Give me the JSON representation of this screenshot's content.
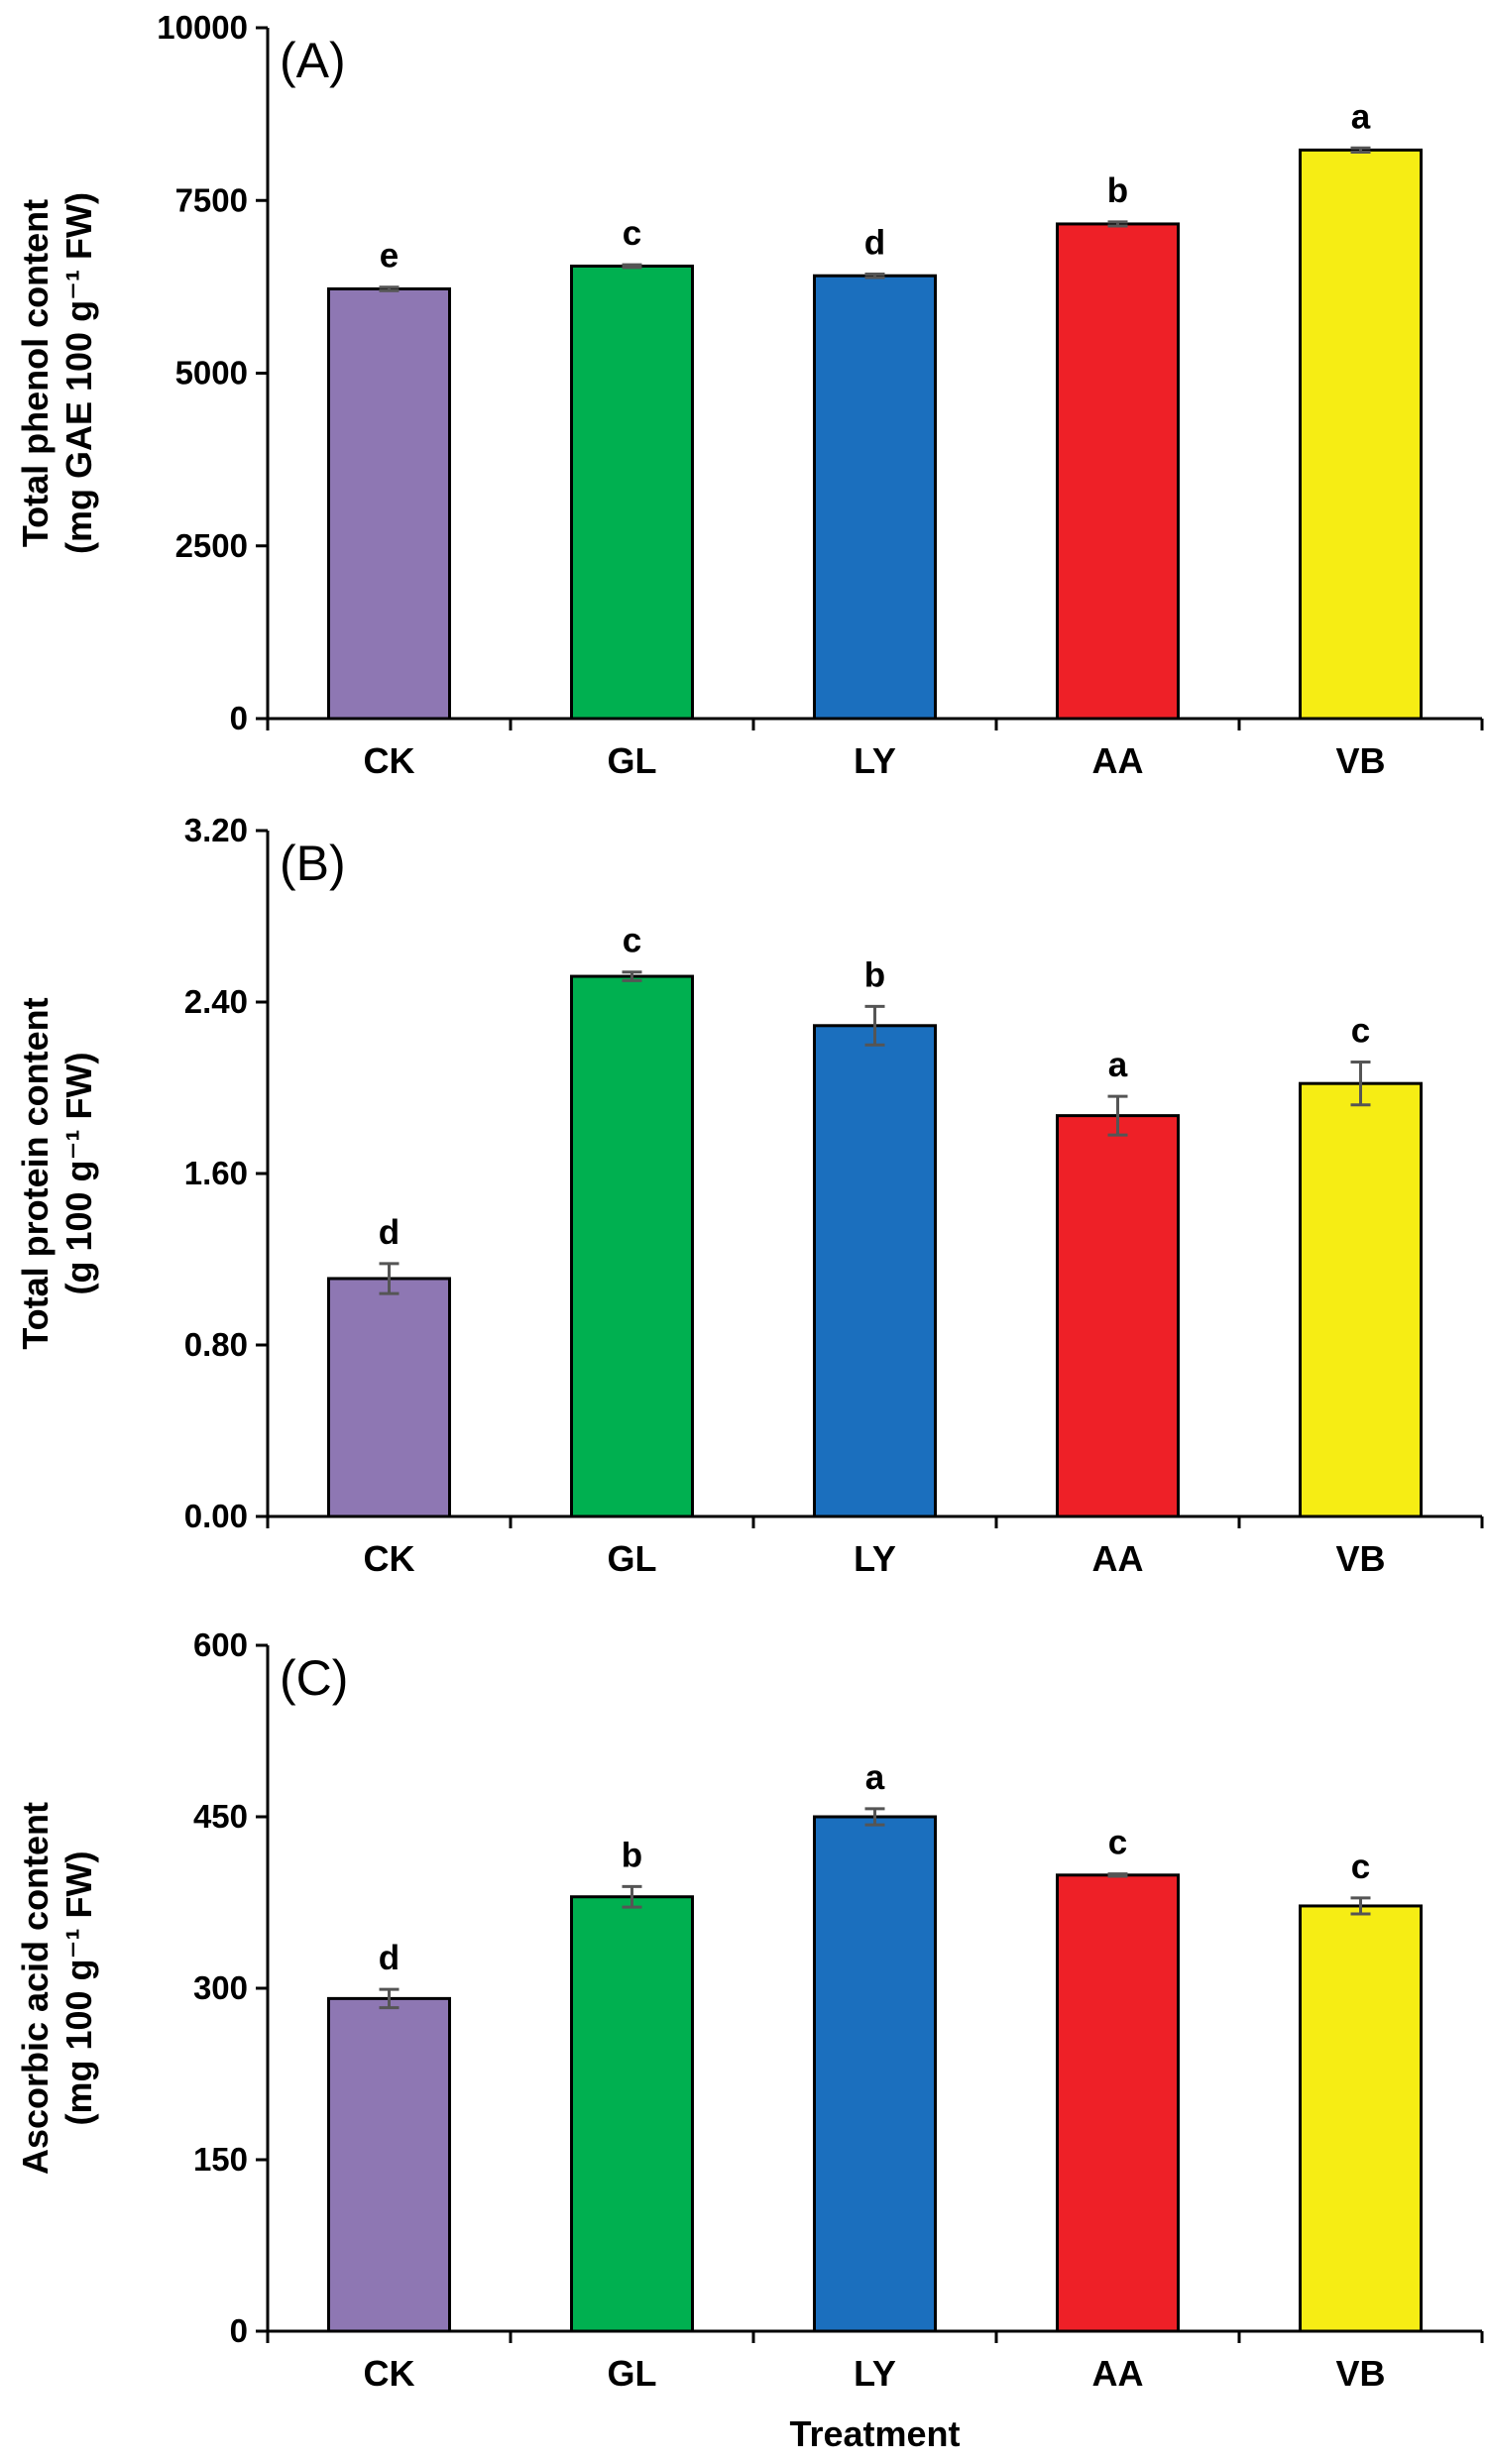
{
  "figure": {
    "xlabel": "Treatment"
  },
  "chart_data": [
    {
      "type": "bar",
      "panel_label": "(A)",
      "ylabel_line1": "Total phenol content",
      "ylabel_line2": "(mg GAE 100 g⁻¹ FW)",
      "categories": [
        "CK",
        "GL",
        "LY",
        "AA",
        "VB"
      ],
      "values": [
        6220,
        6550,
        6410,
        7160,
        8230
      ],
      "errors": [
        25,
        20,
        25,
        30,
        30
      ],
      "significance": [
        "e",
        "c",
        "d",
        "b",
        "a"
      ],
      "ylim": [
        0,
        10000
      ],
      "yticks": [
        "0",
        "2500",
        "5000",
        "7500",
        "10000"
      ],
      "colors": [
        "#8e77b3",
        "#00b050",
        "#1b6fbe",
        "#ee2027",
        "#f6ed14"
      ],
      "grid": false
    },
    {
      "type": "bar",
      "panel_label": "(B)",
      "ylabel_line1": "Total protein content",
      "ylabel_line2": "(g 100 g⁻¹ FW)",
      "categories": [
        "CK",
        "GL",
        "LY",
        "AA",
        "VB"
      ],
      "values": [
        1.11,
        2.52,
        2.29,
        1.87,
        2.02
      ],
      "errors": [
        0.07,
        0.02,
        0.09,
        0.09,
        0.1
      ],
      "significance": [
        "d",
        "c",
        "b",
        "a",
        "c"
      ],
      "ylim": [
        0,
        3.2
      ],
      "yticks": [
        "0.00",
        "0.80",
        "1.60",
        "2.40",
        "3.20"
      ],
      "colors": [
        "#8e77b3",
        "#00b050",
        "#1b6fbe",
        "#ee2027",
        "#f6ed14"
      ],
      "grid": false
    },
    {
      "type": "bar",
      "panel_label": "(C)",
      "ylabel_line1": "Ascorbic  acid content",
      "ylabel_line2": "(mg 100 g⁻¹ FW)",
      "categories": [
        "CK",
        "GL",
        "LY",
        "AA",
        "VB"
      ],
      "values": [
        291,
        380,
        450,
        399,
        372
      ],
      "errors": [
        8,
        9,
        7,
        1,
        7
      ],
      "significance": [
        "d",
        "b",
        "a",
        "c",
        "c"
      ],
      "ylim": [
        0,
        600
      ],
      "yticks": [
        "0",
        "150",
        "300",
        "450",
        "600"
      ],
      "colors": [
        "#8e77b3",
        "#00b050",
        "#1b6fbe",
        "#ee2027",
        "#f6ed14"
      ],
      "grid": false
    }
  ]
}
